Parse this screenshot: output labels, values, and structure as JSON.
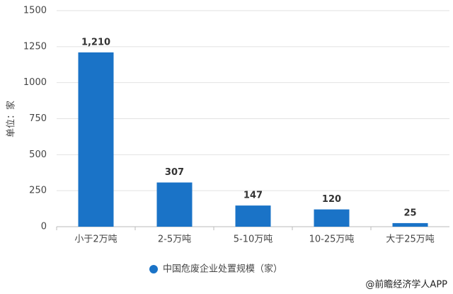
{
  "chart_data": {
    "type": "bar",
    "categories": [
      "小于2万吨",
      "2-5万吨",
      "5-10万吨",
      "10-25万吨",
      "大于25万吨"
    ],
    "values": [
      1210,
      307,
      147,
      120,
      25
    ],
    "value_labels": [
      "1,210",
      "307",
      "147",
      "120",
      "25"
    ],
    "color": "#1a73c7",
    "ylabel": "单位：家",
    "legend": "中国危废企业处置规模（家）",
    "source": "@前瞻经济学人APP",
    "ylim": [
      0,
      1500
    ],
    "yticks": [
      0,
      250,
      500,
      750,
      1000,
      1250,
      1500
    ],
    "grid": true
  }
}
